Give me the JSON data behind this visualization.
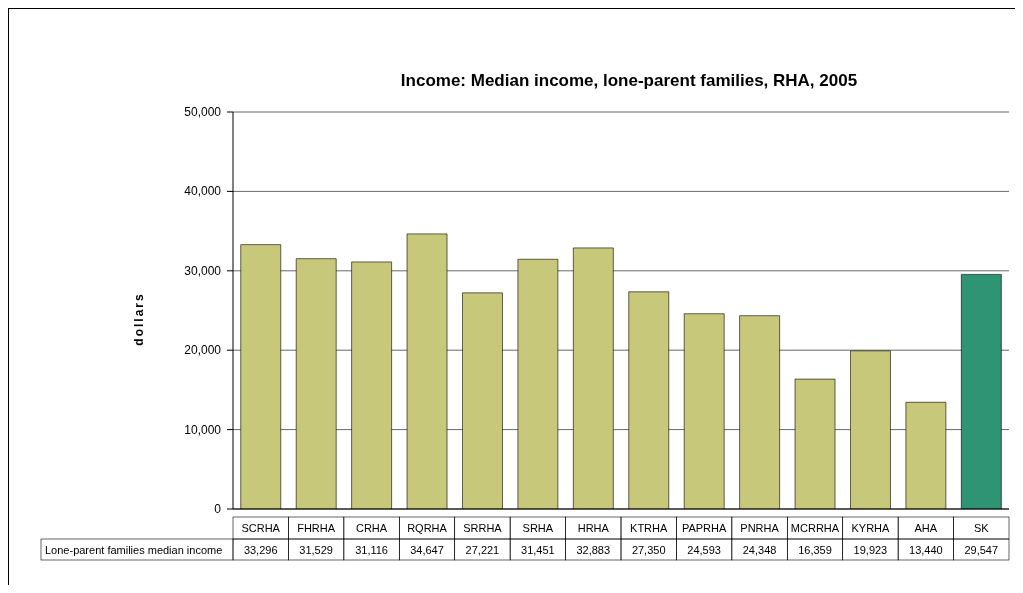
{
  "chart_data": {
    "type": "bar",
    "title": "Income: Median income, lone-parent families, RHA, 2005",
    "ylabel": "dollars",
    "categories": [
      "SCRHA",
      "FHRHA",
      "CRHA",
      "RQRHA",
      "SRRHA",
      "SRHA",
      "HRHA",
      "KTRHA",
      "PAPRHA",
      "PNRHA",
      "MCRRHA",
      "KYRHA",
      "AHA",
      "SK"
    ],
    "series": [
      {
        "name": "Lone-parent families median income",
        "values": [
          33296,
          31529,
          31116,
          34647,
          27221,
          31451,
          32883,
          27350,
          24593,
          24348,
          16359,
          19923,
          13440,
          29547
        ],
        "value_labels": [
          "33,296",
          "31,529",
          "31,116",
          "34,647",
          "27,221",
          "31,451",
          "32,883",
          "27,350",
          "24,593",
          "24,348",
          "16,359",
          "19,923",
          "13,440",
          "29,547"
        ],
        "colors": [
          "#c8c87a",
          "#c8c87a",
          "#c8c87a",
          "#c8c87a",
          "#c8c87a",
          "#c8c87a",
          "#c8c87a",
          "#c8c87a",
          "#c8c87a",
          "#c8c87a",
          "#c8c87a",
          "#c8c87a",
          "#c8c87a",
          "#2e9473"
        ]
      }
    ],
    "ylim": [
      0,
      50000
    ],
    "yticks": [
      0,
      {
        "value": 10000,
        "label": "10,000"
      },
      {
        "value": 20000,
        "label": "20,000"
      },
      {
        "value": 30000,
        "label": "30,000"
      },
      {
        "value": 40000,
        "label": "40,000"
      },
      {
        "value": 50000,
        "label": "50,000"
      }
    ],
    "grid": "y"
  }
}
